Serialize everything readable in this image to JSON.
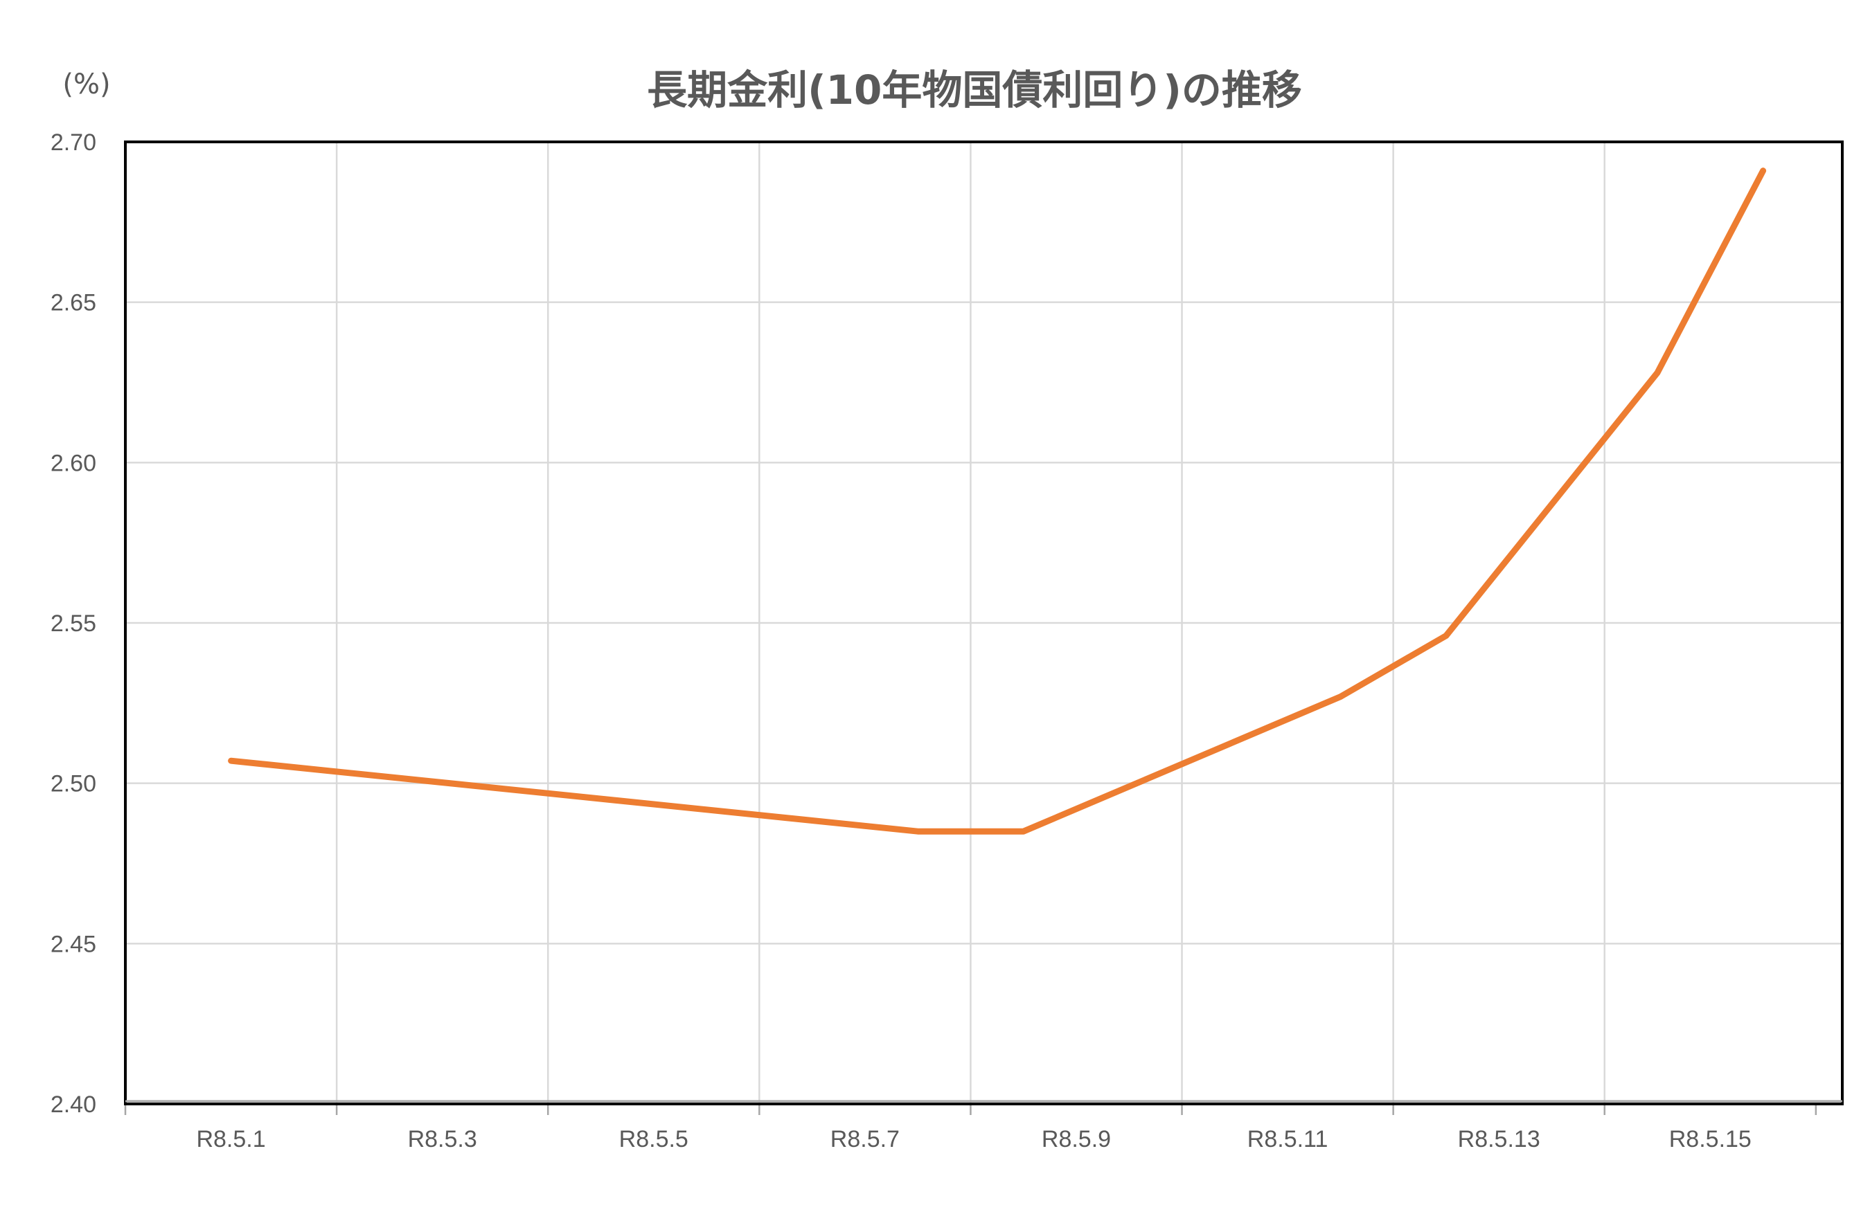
{
  "chart_data": {
    "type": "line",
    "title": "長期金利(10年物国債利回り)の推移",
    "unit_label": "(%)",
    "xlabel": "",
    "ylabel": "",
    "x_categories": [
      "R8.5.1",
      "R8.5.3",
      "R8.5.5",
      "R8.5.7",
      "R8.5.9",
      "R8.5.11",
      "R8.5.13",
      "R8.5.15"
    ],
    "y_ticks": [
      "2.40",
      "2.45",
      "2.50",
      "2.55",
      "2.60",
      "2.65",
      "2.70"
    ],
    "ylim": [
      2.4,
      2.7
    ],
    "grid": true,
    "legend": "none",
    "series": [
      {
        "color": "#ED7D31",
        "points": [
          {
            "x": 1,
            "y": 2.507
          },
          {
            "x": 7.5,
            "y": 2.485
          },
          {
            "x": 8.5,
            "y": 2.485
          },
          {
            "x": 11.5,
            "y": 2.527
          },
          {
            "x": 12.5,
            "y": 2.546
          },
          {
            "x": 14.5,
            "y": 2.628
          },
          {
            "x": 15.5,
            "y": 2.691
          }
        ]
      }
    ]
  }
}
